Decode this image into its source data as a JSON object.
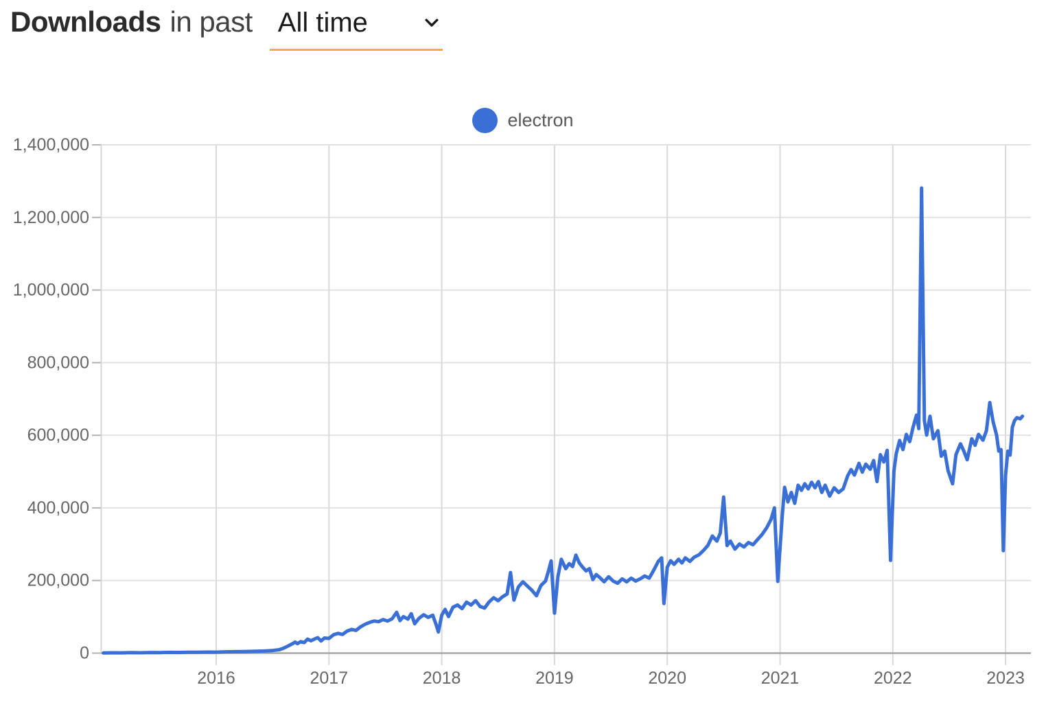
{
  "header": {
    "title": "Downloads",
    "subtitle": "in past",
    "range_value": "All time"
  },
  "legend": {
    "series_label": "electron"
  },
  "colors": {
    "series_line": "#3A70D6",
    "legend_dot": "#3A70D6",
    "range_underline": "#F5A93F",
    "axis_line": "#a6a6a6",
    "grid_line_h": "#e2e2e2",
    "grid_line_v": "#d9d9d9",
    "tick_label": "#666666"
  },
  "chart_data": {
    "type": "line",
    "title": "Downloads in past All time",
    "xlabel": "",
    "ylabel": "",
    "grid": true,
    "legend_position": "top-center",
    "x_range": [
      2014.97,
      2023.2
    ],
    "y_range": [
      0,
      1400000
    ],
    "x_ticks": [
      2016,
      2017,
      2018,
      2019,
      2020,
      2021,
      2022,
      2023
    ],
    "x_tick_labels": [
      "2016",
      "2017",
      "2018",
      "2019",
      "2020",
      "2021",
      "2022",
      "2023"
    ],
    "y_ticks": [
      0,
      200000,
      400000,
      600000,
      800000,
      1000000,
      1200000,
      1400000
    ],
    "y_tick_labels": [
      "0",
      "200,000",
      "400,000",
      "600,000",
      "800,000",
      "1,000,000",
      "1,200,000",
      "1,400,000"
    ],
    "series": [
      {
        "name": "electron",
        "color": "#3A70D6",
        "points": [
          [
            2015.0,
            400
          ],
          [
            2015.08,
            900
          ],
          [
            2015.16,
            700
          ],
          [
            2015.25,
            1300
          ],
          [
            2015.33,
            1000
          ],
          [
            2015.42,
            1700
          ],
          [
            2015.5,
            1400
          ],
          [
            2015.58,
            2100
          ],
          [
            2015.67,
            1800
          ],
          [
            2015.75,
            2500
          ],
          [
            2015.83,
            2200
          ],
          [
            2015.92,
            2900
          ],
          [
            2016.0,
            2700
          ],
          [
            2016.08,
            3500
          ],
          [
            2016.17,
            3900
          ],
          [
            2016.25,
            4400
          ],
          [
            2016.33,
            4900
          ],
          [
            2016.42,
            5700
          ],
          [
            2016.5,
            7200
          ],
          [
            2016.56,
            9500
          ],
          [
            2016.6,
            14000
          ],
          [
            2016.64,
            20000
          ],
          [
            2016.68,
            26500
          ],
          [
            2016.7,
            30500
          ],
          [
            2016.72,
            26000
          ],
          [
            2016.75,
            31500
          ],
          [
            2016.78,
            29000
          ],
          [
            2016.81,
            38500
          ],
          [
            2016.84,
            34000
          ],
          [
            2016.87,
            38500
          ],
          [
            2016.9,
            42500
          ],
          [
            2016.93,
            33500
          ],
          [
            2016.96,
            41500
          ],
          [
            2017.0,
            40500
          ],
          [
            2017.04,
            50500
          ],
          [
            2017.08,
            54500
          ],
          [
            2017.12,
            51500
          ],
          [
            2017.16,
            60500
          ],
          [
            2017.2,
            65500
          ],
          [
            2017.24,
            62500
          ],
          [
            2017.28,
            72500
          ],
          [
            2017.32,
            79500
          ],
          [
            2017.36,
            84500
          ],
          [
            2017.4,
            88500
          ],
          [
            2017.44,
            86500
          ],
          [
            2017.48,
            92500
          ],
          [
            2017.52,
            88500
          ],
          [
            2017.56,
            94500
          ],
          [
            2017.6,
            112500
          ],
          [
            2017.63,
            89500
          ],
          [
            2017.66,
            100500
          ],
          [
            2017.7,
            93500
          ],
          [
            2017.73,
            108500
          ],
          [
            2017.76,
            81000
          ],
          [
            2017.8,
            96500
          ],
          [
            2017.84,
            105500
          ],
          [
            2017.88,
            98500
          ],
          [
            2017.92,
            104500
          ],
          [
            2017.95,
            78500
          ],
          [
            2017.97,
            58500
          ],
          [
            2018.0,
            104500
          ],
          [
            2018.03,
            120500
          ],
          [
            2018.06,
            100500
          ],
          [
            2018.1,
            126500
          ],
          [
            2018.14,
            132500
          ],
          [
            2018.18,
            122500
          ],
          [
            2018.22,
            140500
          ],
          [
            2018.26,
            132500
          ],
          [
            2018.3,
            144500
          ],
          [
            2018.34,
            128500
          ],
          [
            2018.38,
            124000
          ],
          [
            2018.42,
            141000
          ],
          [
            2018.46,
            152500
          ],
          [
            2018.5,
            144500
          ],
          [
            2018.54,
            155500
          ],
          [
            2018.58,
            163000
          ],
          [
            2018.61,
            222000
          ],
          [
            2018.64,
            146000
          ],
          [
            2018.68,
            182500
          ],
          [
            2018.72,
            196500
          ],
          [
            2018.76,
            184500
          ],
          [
            2018.8,
            173000
          ],
          [
            2018.84,
            158000
          ],
          [
            2018.88,
            186500
          ],
          [
            2018.92,
            198500
          ],
          [
            2018.95,
            230000
          ],
          [
            2018.97,
            254000
          ],
          [
            2019.0,
            110000
          ],
          [
            2019.03,
            210000
          ],
          [
            2019.06,
            258500
          ],
          [
            2019.1,
            232500
          ],
          [
            2019.13,
            246500
          ],
          [
            2019.16,
            238500
          ],
          [
            2019.19,
            270000
          ],
          [
            2019.22,
            248500
          ],
          [
            2019.25,
            236500
          ],
          [
            2019.28,
            226500
          ],
          [
            2019.31,
            232500
          ],
          [
            2019.34,
            202500
          ],
          [
            2019.37,
            216500
          ],
          [
            2019.4,
            208500
          ],
          [
            2019.44,
            196500
          ],
          [
            2019.48,
            210500
          ],
          [
            2019.52,
            198500
          ],
          [
            2019.56,
            192500
          ],
          [
            2019.6,
            204500
          ],
          [
            2019.64,
            196500
          ],
          [
            2019.68,
            206500
          ],
          [
            2019.72,
            198500
          ],
          [
            2019.76,
            204500
          ],
          [
            2019.8,
            212500
          ],
          [
            2019.84,
            206500
          ],
          [
            2019.88,
            228500
          ],
          [
            2019.92,
            252500
          ],
          [
            2019.95,
            262500
          ],
          [
            2019.97,
            136500
          ],
          [
            2020.0,
            236500
          ],
          [
            2020.03,
            254500
          ],
          [
            2020.06,
            244500
          ],
          [
            2020.1,
            258500
          ],
          [
            2020.13,
            248500
          ],
          [
            2020.16,
            262500
          ],
          [
            2020.2,
            252500
          ],
          [
            2020.24,
            264500
          ],
          [
            2020.28,
            270500
          ],
          [
            2020.32,
            282500
          ],
          [
            2020.36,
            296500
          ],
          [
            2020.4,
            322500
          ],
          [
            2020.44,
            308500
          ],
          [
            2020.47,
            330500
          ],
          [
            2020.5,
            430000
          ],
          [
            2020.53,
            296500
          ],
          [
            2020.56,
            308500
          ],
          [
            2020.6,
            286500
          ],
          [
            2020.64,
            300500
          ],
          [
            2020.68,
            292500
          ],
          [
            2020.72,
            304500
          ],
          [
            2020.76,
            298500
          ],
          [
            2020.8,
            312500
          ],
          [
            2020.84,
            326500
          ],
          [
            2020.88,
            344500
          ],
          [
            2020.92,
            368500
          ],
          [
            2020.95,
            400000
          ],
          [
            2020.98,
            197500
          ],
          [
            2021.02,
            380500
          ],
          [
            2021.04,
            456500
          ],
          [
            2021.07,
            416500
          ],
          [
            2021.1,
            442500
          ],
          [
            2021.13,
            412500
          ],
          [
            2021.16,
            462500
          ],
          [
            2021.19,
            448500
          ],
          [
            2021.22,
            466500
          ],
          [
            2021.25,
            452500
          ],
          [
            2021.28,
            470500
          ],
          [
            2021.31,
            455500
          ],
          [
            2021.34,
            472500
          ],
          [
            2021.37,
            442500
          ],
          [
            2021.4,
            462500
          ],
          [
            2021.44,
            432500
          ],
          [
            2021.48,
            455500
          ],
          [
            2021.52,
            442500
          ],
          [
            2021.56,
            452500
          ],
          [
            2021.6,
            488500
          ],
          [
            2021.63,
            505500
          ],
          [
            2021.66,
            490500
          ],
          [
            2021.7,
            522500
          ],
          [
            2021.73,
            498500
          ],
          [
            2021.76,
            520500
          ],
          [
            2021.8,
            506500
          ],
          [
            2021.83,
            530500
          ],
          [
            2021.86,
            472500
          ],
          [
            2021.89,
            546500
          ],
          [
            2021.92,
            526500
          ],
          [
            2021.95,
            558500
          ],
          [
            2021.98,
            255500
          ],
          [
            2022.01,
            500500
          ],
          [
            2022.03,
            548500
          ],
          [
            2022.06,
            585500
          ],
          [
            2022.09,
            560500
          ],
          [
            2022.12,
            602500
          ],
          [
            2022.15,
            582500
          ],
          [
            2022.18,
            622500
          ],
          [
            2022.21,
            655500
          ],
          [
            2022.23,
            618500
          ],
          [
            2022.255,
            1281000
          ],
          [
            2022.28,
            640500
          ],
          [
            2022.3,
            600500
          ],
          [
            2022.33,
            652500
          ],
          [
            2022.36,
            590500
          ],
          [
            2022.4,
            612500
          ],
          [
            2022.43,
            542500
          ],
          [
            2022.46,
            556500
          ],
          [
            2022.49,
            502500
          ],
          [
            2022.53,
            466500
          ],
          [
            2022.56,
            546500
          ],
          [
            2022.6,
            576500
          ],
          [
            2022.63,
            556500
          ],
          [
            2022.66,
            532500
          ],
          [
            2022.7,
            590500
          ],
          [
            2022.73,
            572500
          ],
          [
            2022.76,
            602500
          ],
          [
            2022.8,
            586500
          ],
          [
            2022.83,
            612500
          ],
          [
            2022.86,
            690000
          ],
          [
            2022.89,
            636500
          ],
          [
            2022.92,
            600500
          ],
          [
            2022.94,
            556500
          ],
          [
            2022.96,
            560500
          ],
          [
            2022.98,
            282000
          ],
          [
            2023.0,
            490500
          ],
          [
            2023.02,
            556500
          ],
          [
            2023.04,
            545500
          ],
          [
            2023.06,
            622500
          ],
          [
            2023.08,
            640500
          ],
          [
            2023.1,
            648500
          ],
          [
            2023.13,
            645500
          ],
          [
            2023.15,
            652500
          ]
        ]
      }
    ]
  }
}
